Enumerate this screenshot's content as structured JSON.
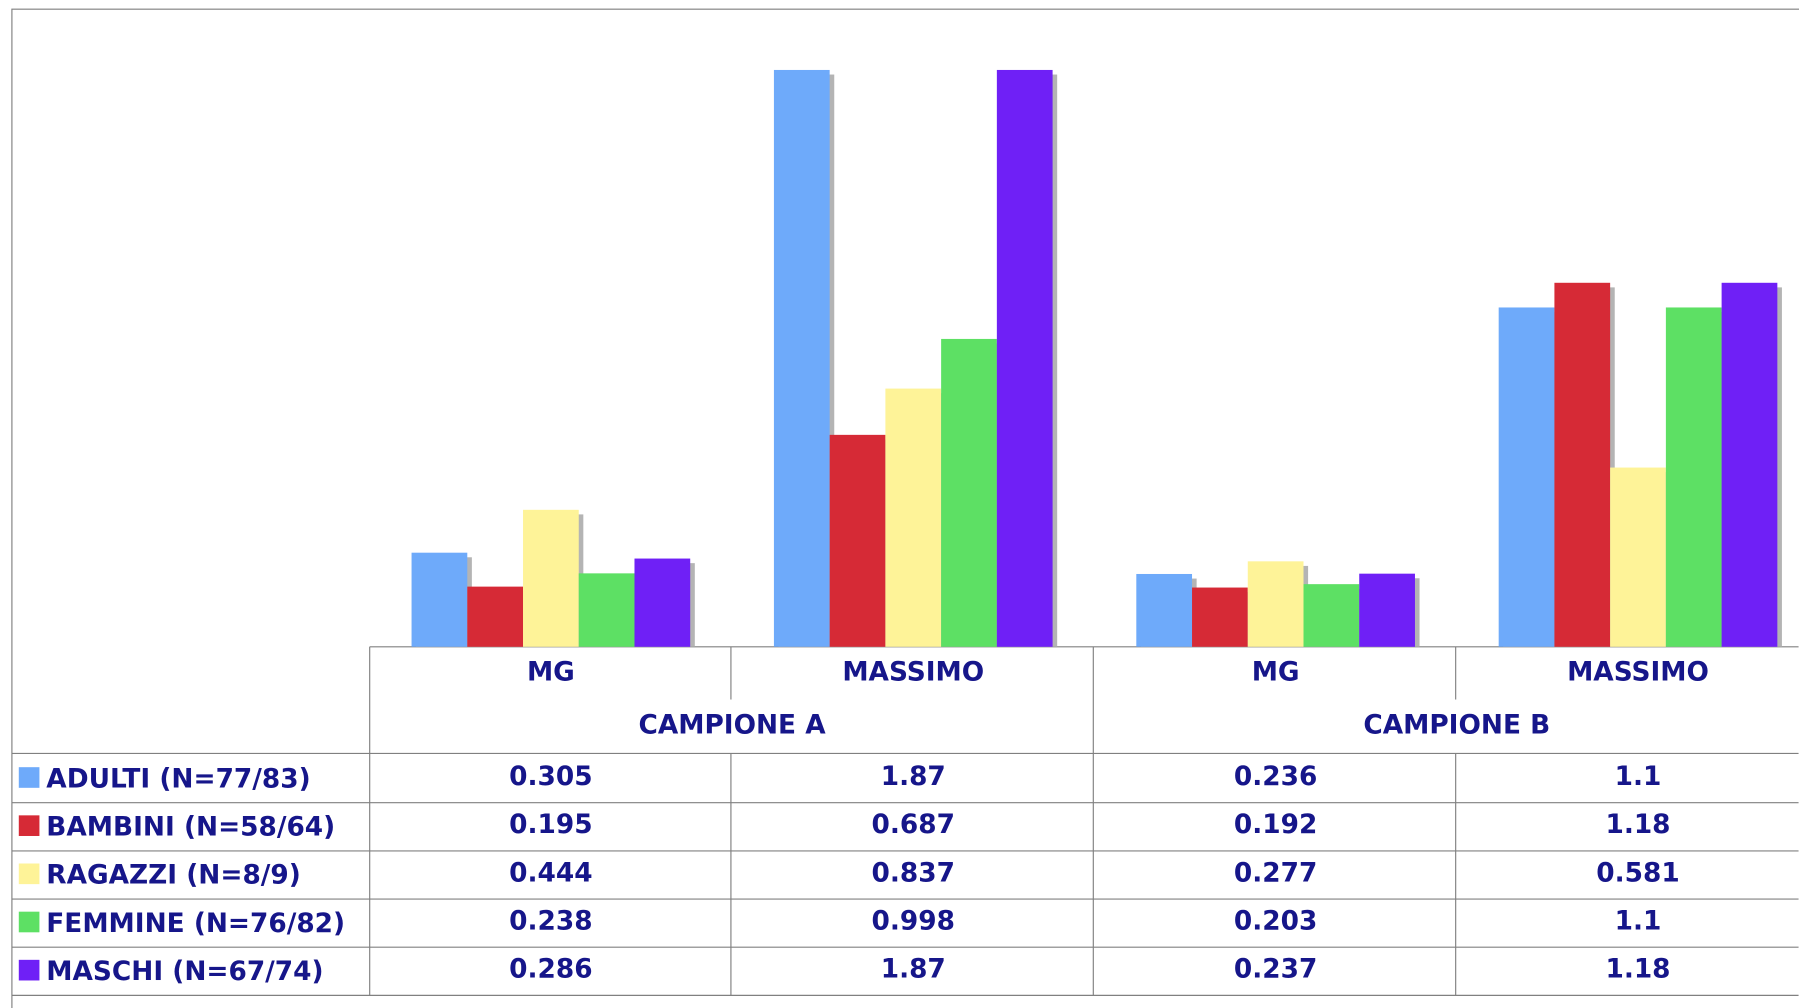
{
  "chart_data": {
    "type": "bar",
    "categories": [
      "MG",
      "MASSIMO",
      "MG",
      "MASSIMO"
    ],
    "groups": [
      "CAMPIONE A",
      "CAMPIONE B"
    ],
    "series": [
      {
        "name": "ADULTI (N=77/83)",
        "color": "#6eaafa",
        "values": [
          0.305,
          1.87,
          0.236,
          1.1
        ]
      },
      {
        "name": "BAMBINI (N=58/64)",
        "color": "#d62a36",
        "values": [
          0.195,
          0.687,
          0.192,
          1.18
        ]
      },
      {
        "name": "RAGAZZI (N=8/9)",
        "color": "#fef398",
        "values": [
          0.444,
          0.837,
          0.277,
          0.581
        ]
      },
      {
        "name": "FEMMINE (N=76/82)",
        "color": "#5de064",
        "values": [
          0.238,
          0.998,
          0.203,
          1.1
        ]
      },
      {
        "name": "MASCHI (N=67/74)",
        "color": "#6f20f6",
        "values": [
          0.286,
          1.87,
          0.237,
          1.18
        ]
      }
    ],
    "ylim": [
      0,
      1.87
    ]
  }
}
